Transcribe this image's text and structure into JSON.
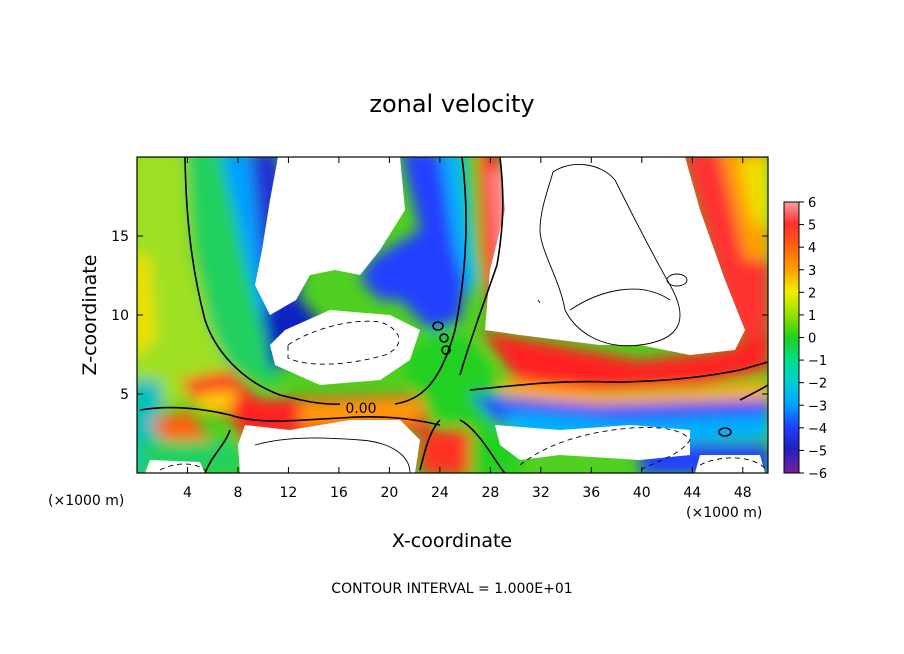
{
  "chart_data": {
    "type": "heatmap",
    "title": "zonal velocity",
    "xlabel": "X-coordinate",
    "ylabel": "Z-coordinate",
    "x_unit_left": "(×1000 m)",
    "x_unit_right": "(×1000 m)",
    "xlim": [
      0,
      50
    ],
    "ylim": [
      0,
      20
    ],
    "x_ticks": [
      4,
      8,
      12,
      16,
      20,
      24,
      28,
      32,
      36,
      40,
      44,
      48
    ],
    "y_ticks": [
      5,
      10,
      15
    ],
    "colorbar": {
      "ticks": [
        6,
        5,
        4,
        3,
        2,
        1,
        0,
        -1,
        -2,
        -3,
        -4,
        -5,
        -6
      ],
      "range": [
        -6,
        6
      ]
    },
    "contour_label": "0.00",
    "footer": "CONTOUR INTERVAL = 1.000E+01"
  },
  "colors": {
    "scale_high": "#f08a8a",
    "scale_low": "#7a1fa0",
    "red": "#ff2020",
    "green": "#20d020",
    "blue": "#2040ff"
  }
}
